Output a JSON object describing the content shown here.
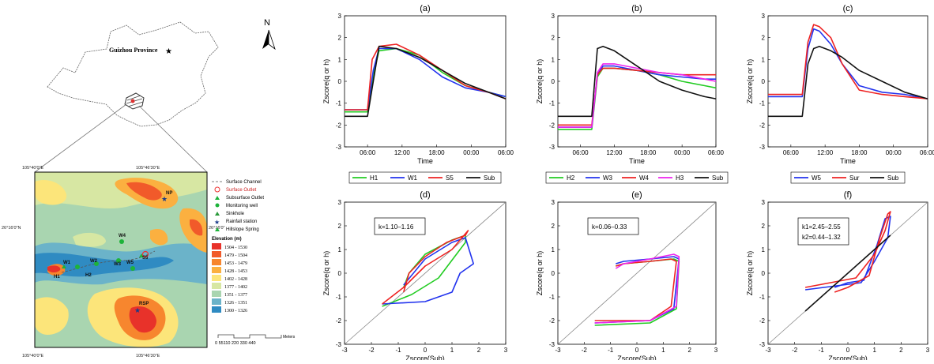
{
  "map": {
    "province_label": "Guizhou Province",
    "north_label": "N",
    "coords": {
      "top_left": "105°40′0″E",
      "top_right": "105°46′30″E",
      "left_mid": "26°16′0″N",
      "right_mid": "26°16′0″",
      "bottom_left": "105°40′0″E",
      "bottom_right": "105°46′30″E"
    },
    "site_labels": [
      "NP",
      "W4",
      "W1",
      "W2",
      "W3",
      "W5",
      "H1",
      "H2",
      "S5",
      "RSP"
    ],
    "legend_items": [
      {
        "label": "Surface Channel",
        "icon": "channel-line-icon"
      },
      {
        "label": "Surface Outlet",
        "icon": "surface-outlet-icon"
      },
      {
        "label": "Subsurface Outlet",
        "icon": "subsurface-outlet-icon"
      },
      {
        "label": "Monitoring well",
        "icon": "monitoring-well-icon"
      },
      {
        "label": "Sinkhole",
        "icon": "sinkhole-icon"
      },
      {
        "label": "Rainfall station",
        "icon": "rainfall-station-icon"
      },
      {
        "label": "Hillslope Spring",
        "icon": "hillslope-spring-icon"
      }
    ],
    "elevation_title": "Elevation (m)",
    "elevation_bands": [
      {
        "label": "1504 - 1530",
        "color": "#e8322a"
      },
      {
        "label": "1479 - 1504",
        "color": "#f15a2a"
      },
      {
        "label": "1453 - 1479",
        "color": "#f7862e"
      },
      {
        "label": "1428 - 1453",
        "color": "#fbb040"
      },
      {
        "label": "1402 - 1428",
        "color": "#fce57a"
      },
      {
        "label": "1377 - 1402",
        "color": "#d7e7a3"
      },
      {
        "label": "1351 - 1377",
        "color": "#a9d5b0"
      },
      {
        "label": "1326 - 1351",
        "color": "#6bb3c9"
      },
      {
        "label": "1300 - 1326",
        "color": "#2f8bc2"
      }
    ],
    "scale_label": "Meters",
    "scale_ticks": "0 55110  220  330  440"
  },
  "chart_data": [
    {
      "panel": "(a)",
      "type": "line",
      "xlabel": "Time",
      "ylabel": "Zscore(q or h)",
      "ylim": [
        -3,
        3
      ],
      "xticks": [
        "06:00",
        "12:00",
        "18:00",
        "00:00",
        "06:00"
      ],
      "series": [
        {
          "name": "H1",
          "color": "#22cc22",
          "x": [
            0,
            4,
            5,
            6,
            9,
            13,
            17,
            21,
            25,
            28
          ],
          "values": [
            -1.4,
            -1.4,
            0.3,
            1.4,
            1.5,
            1.2,
            0.4,
            -0.2,
            -0.5,
            -0.7
          ]
        },
        {
          "name": "W1",
          "color": "#2233ee",
          "x": [
            0,
            4,
            5,
            6,
            9,
            13,
            17,
            21,
            25,
            28
          ],
          "values": [
            -1.3,
            -1.3,
            0.5,
            1.5,
            1.5,
            1.0,
            0.2,
            -0.3,
            -0.5,
            -0.7
          ]
        },
        {
          "name": "S5",
          "color": "#ee2222",
          "x": [
            0,
            4,
            4.8,
            6,
            9,
            13,
            17,
            21,
            25,
            28
          ],
          "values": [
            -1.3,
            -1.3,
            1.0,
            1.6,
            1.7,
            1.2,
            0.5,
            -0.2,
            -0.5,
            -0.8
          ]
        },
        {
          "name": "Sub",
          "color": "#111111",
          "x": [
            0,
            4,
            5,
            6,
            9,
            13,
            17,
            21,
            25,
            28
          ],
          "values": [
            -1.6,
            -1.6,
            0.0,
            1.6,
            1.5,
            1.1,
            0.5,
            -0.1,
            -0.5,
            -0.8
          ]
        }
      ]
    },
    {
      "panel": "(b)",
      "type": "line",
      "xlabel": "Time",
      "ylabel": "Zscore(q or h)",
      "ylim": [
        -3,
        3
      ],
      "xticks": [
        "06:00",
        "12:00",
        "18:00",
        "00:00",
        "06:00"
      ],
      "series": [
        {
          "name": "H2",
          "color": "#22cc22",
          "x": [
            0,
            6,
            7,
            8,
            10,
            14,
            18,
            22,
            26,
            28
          ],
          "values": [
            -2.2,
            -2.2,
            0.2,
            0.6,
            0.6,
            0.5,
            0.3,
            0.0,
            -0.2,
            -0.3
          ]
        },
        {
          "name": "W3",
          "color": "#2233ee",
          "x": [
            0,
            6,
            7,
            8,
            10,
            14,
            18,
            22,
            26,
            28
          ],
          "values": [
            -2.1,
            -2.1,
            0.3,
            0.7,
            0.7,
            0.5,
            0.3,
            0.2,
            0.1,
            0.1
          ]
        },
        {
          "name": "W4",
          "color": "#ee2222",
          "x": [
            0,
            6,
            7,
            8,
            10,
            14,
            18,
            22,
            26,
            28
          ],
          "values": [
            -2.0,
            -2.0,
            0.3,
            0.6,
            0.6,
            0.5,
            0.4,
            0.3,
            0.3,
            0.3
          ]
        },
        {
          "name": "H3",
          "color": "#ee22ee",
          "x": [
            0,
            6,
            7,
            8,
            10,
            14,
            18,
            22,
            26,
            28
          ],
          "values": [
            -2.1,
            -2.1,
            0.4,
            0.8,
            0.8,
            0.6,
            0.4,
            0.3,
            0.1,
            0.0
          ]
        },
        {
          "name": "Sub",
          "color": "#111111",
          "x": [
            0,
            6,
            7,
            8,
            10,
            14,
            18,
            22,
            26,
            28
          ],
          "values": [
            -1.6,
            -1.6,
            1.5,
            1.6,
            1.4,
            0.7,
            0.0,
            -0.4,
            -0.7,
            -0.8
          ]
        }
      ]
    },
    {
      "panel": "(c)",
      "type": "line",
      "xlabel": "Time",
      "ylabel": "Zscore(q or h)",
      "ylim": [
        -3,
        3
      ],
      "xticks": [
        "06:00",
        "12:00",
        "18:00",
        "00:00",
        "06:00"
      ],
      "series": [
        {
          "name": "W5",
          "color": "#2233ee",
          "x": [
            0,
            6,
            7,
            8,
            9,
            11,
            13,
            16,
            20,
            24,
            28
          ],
          "values": [
            -0.7,
            -0.7,
            1.5,
            2.4,
            2.3,
            1.7,
            0.8,
            -0.2,
            -0.5,
            -0.6,
            -0.8
          ]
        },
        {
          "name": "Sur",
          "color": "#ee2222",
          "x": [
            0,
            6,
            7,
            8,
            9,
            11,
            13,
            16,
            20,
            24,
            28
          ],
          "values": [
            -0.6,
            -0.6,
            1.8,
            2.6,
            2.5,
            2.0,
            0.8,
            -0.4,
            -0.6,
            -0.7,
            -0.8
          ]
        },
        {
          "name": "Sub",
          "color": "#111111",
          "x": [
            0,
            6,
            7,
            8,
            9,
            11,
            13,
            16,
            20,
            24,
            28
          ],
          "values": [
            -1.6,
            -1.6,
            0.8,
            1.5,
            1.6,
            1.4,
            1.1,
            0.5,
            0.0,
            -0.5,
            -0.8
          ]
        }
      ]
    },
    {
      "panel": "(d)",
      "type": "scatter",
      "xlabel": "Zscore(Sub)",
      "ylabel": "Zscore(q or h)",
      "xlim": [
        -3,
        3
      ],
      "ylim": [
        -3,
        3
      ],
      "annotation": "k=1.10–1.16",
      "series": [
        {
          "name": "H1",
          "color": "#22cc22",
          "x": [
            -1.6,
            -0.5,
            0.5,
            1.5,
            1.5,
            1.0,
            0.0,
            -0.6,
            -0.8
          ],
          "values": [
            -1.4,
            -0.9,
            -0.2,
            1.3,
            1.6,
            1.4,
            0.8,
            0.0,
            -0.6
          ]
        },
        {
          "name": "W1",
          "color": "#2233ee",
          "x": [
            -1.6,
            0.0,
            1.0,
            1.3,
            1.8,
            1.5,
            1.0,
            0.0,
            -0.8
          ],
          "values": [
            -1.3,
            -1.2,
            -0.8,
            0.0,
            0.4,
            1.5,
            1.3,
            0.6,
            -0.5
          ]
        },
        {
          "name": "S5",
          "color": "#ee2222",
          "x": [
            -1.6,
            -0.8,
            0.0,
            1.0,
            1.6,
            1.5,
            0.8,
            0.0,
            -0.6,
            -0.8
          ],
          "values": [
            -1.3,
            -0.6,
            0.3,
            1.0,
            1.8,
            1.6,
            1.3,
            0.7,
            0.0,
            -0.8
          ]
        }
      ]
    },
    {
      "panel": "(e)",
      "type": "scatter",
      "xlabel": "Zscore(Sub)",
      "ylabel": "Zscore(q or h)",
      "xlim": [
        -3,
        3
      ],
      "ylim": [
        -3,
        3
      ],
      "annotation": "k=0.06–0.33",
      "series": [
        {
          "name": "H2",
          "color": "#22cc22",
          "x": [
            -1.6,
            0.5,
            1.5,
            1.6,
            1.4,
            0.5,
            -0.5,
            -0.8
          ],
          "values": [
            -2.2,
            -2.1,
            -1.5,
            0.5,
            0.6,
            0.5,
            0.4,
            0.3
          ]
        },
        {
          "name": "W3",
          "color": "#2233ee",
          "x": [
            -1.6,
            0.5,
            1.4,
            1.6,
            1.4,
            0.5,
            -0.5,
            -0.8
          ],
          "values": [
            -2.1,
            -2.0,
            -1.5,
            0.6,
            0.7,
            0.6,
            0.5,
            0.4
          ]
        },
        {
          "name": "W4",
          "color": "#ee2222",
          "x": [
            -1.6,
            0.5,
            1.3,
            1.5,
            1.3,
            0.5,
            -0.5,
            -0.8
          ],
          "values": [
            -2.0,
            -2.0,
            -1.4,
            0.5,
            0.6,
            0.5,
            0.4,
            0.3
          ]
        },
        {
          "name": "H3",
          "color": "#ee22ee",
          "x": [
            -1.6,
            0.5,
            1.5,
            1.6,
            1.4,
            0.5,
            -0.5,
            -0.8
          ],
          "values": [
            -2.1,
            -2.0,
            -1.4,
            0.7,
            0.8,
            0.6,
            0.4,
            0.2
          ]
        }
      ]
    },
    {
      "panel": "(f)",
      "type": "scatter",
      "xlabel": "Zscore(Sub)",
      "ylabel": "Zscore(q or h)",
      "xlim": [
        -3,
        3
      ],
      "ylim": [
        -3,
        3
      ],
      "annotation": [
        "k1=2.45–2.55",
        "k2=0.44–1.32"
      ],
      "series": [
        {
          "name": "W5",
          "color": "#2233ee",
          "x": [
            -1.6,
            0.5,
            1.0,
            1.5,
            1.6,
            1.4,
            1.1,
            0.6,
            0.0,
            -0.5
          ],
          "values": [
            -0.7,
            -0.4,
            0.5,
            1.5,
            2.4,
            2.3,
            1.2,
            -0.3,
            -0.4,
            -0.6
          ]
        },
        {
          "name": "Sur",
          "color": "#ee2222",
          "x": [
            -1.6,
            0.3,
            1.0,
            1.4,
            1.6,
            1.5,
            1.2,
            0.8,
            0.0,
            -0.5
          ],
          "values": [
            -0.6,
            -0.2,
            0.8,
            1.8,
            2.6,
            2.5,
            1.5,
            -0.1,
            -0.6,
            -0.8
          ]
        },
        {
          "name": "Sub",
          "color": "#111111",
          "x": [
            -1.6,
            1.6
          ],
          "values": [
            -1.6,
            1.6
          ]
        }
      ]
    }
  ]
}
